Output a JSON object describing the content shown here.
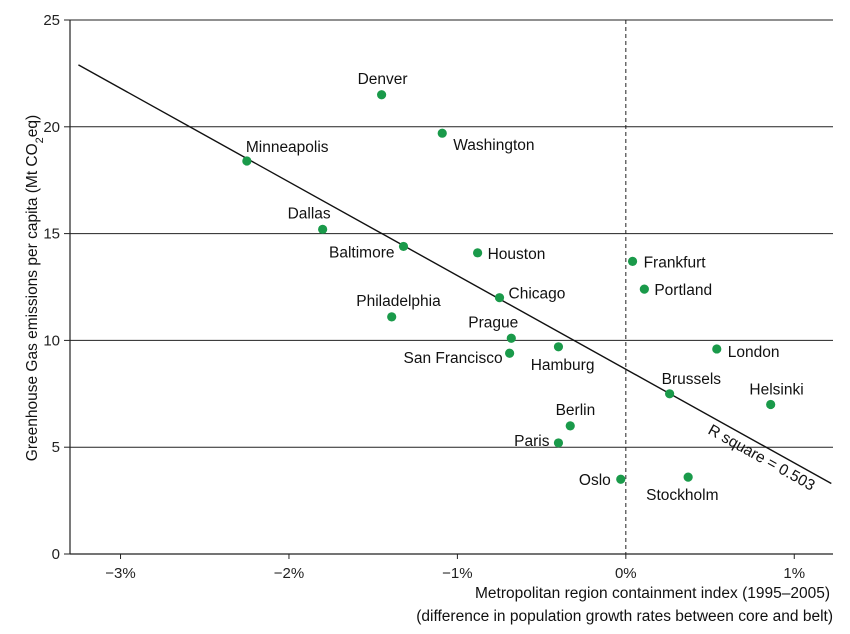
{
  "chart_data": {
    "type": "scatter",
    "xlabel_lines": [
      "Metropolitan region containment index (1995–2005)",
      "(difference in population growth rates between core and belt)"
    ],
    "ylabel_prefix": "Greenhouse Gas emissions per capita (Mt CO",
    "ylabel_sub": "2",
    "ylabel_suffix": "eq)",
    "xlim": [
      -3.3,
      1.23
    ],
    "ylim": [
      0,
      25
    ],
    "x_ticks": [
      {
        "v": -3,
        "label": "−3%"
      },
      {
        "v": -2,
        "label": "−2%"
      },
      {
        "v": -1,
        "label": "−1%"
      },
      {
        "v": 0,
        "label": "0%"
      },
      {
        "v": 1,
        "label": "1%"
      }
    ],
    "y_ticks": [
      {
        "v": 0,
        "label": "0"
      },
      {
        "v": 5,
        "label": "5"
      },
      {
        "v": 10,
        "label": "10"
      },
      {
        "v": 15,
        "label": "15"
      },
      {
        "v": 20,
        "label": "20"
      },
      {
        "v": 25,
        "label": "25"
      }
    ],
    "grid": "horizontal",
    "reference_line_x": 0,
    "point_color": "#1a9a4a",
    "points": [
      {
        "name": "Denver",
        "x": -1.45,
        "y": 21.5,
        "anchor": "start",
        "dx": -24,
        "dy": -16
      },
      {
        "name": "Washington",
        "x": -1.09,
        "y": 19.7,
        "anchor": "start",
        "dx": 11,
        "dy": 12
      },
      {
        "name": "Minneapolis",
        "x": -2.25,
        "y": 18.4,
        "anchor": "start",
        "dx": -1,
        "dy": -14
      },
      {
        "name": "Dallas",
        "x": -1.8,
        "y": 15.2,
        "anchor": "end",
        "dx": 8,
        "dy": -16
      },
      {
        "name": "Baltimore",
        "x": -1.32,
        "y": 14.4,
        "anchor": "end",
        "dx": -9,
        "dy": 6
      },
      {
        "name": "Houston",
        "x": -0.88,
        "y": 14.1,
        "anchor": "start",
        "dx": 10,
        "dy": 1
      },
      {
        "name": "Frankfurt",
        "x": 0.04,
        "y": 13.7,
        "anchor": "start",
        "dx": 11,
        "dy": 1
      },
      {
        "name": "Portland",
        "x": 0.11,
        "y": 12.4,
        "anchor": "start",
        "dx": 10,
        "dy": 1
      },
      {
        "name": "Chicago",
        "x": -0.75,
        "y": 12.0,
        "anchor": "start",
        "dx": 9,
        "dy": -4
      },
      {
        "name": "Philadelphia",
        "x": -1.39,
        "y": 11.1,
        "anchor": "end",
        "dx": 49,
        "dy": -16
      },
      {
        "name": "Prague",
        "x": -0.68,
        "y": 10.1,
        "anchor": "end",
        "dx": 7,
        "dy": -16
      },
      {
        "name": "San Francisco",
        "x": -0.69,
        "y": 9.4,
        "anchor": "end",
        "dx": -7,
        "dy": 5
      },
      {
        "name": "Hamburg",
        "x": -0.4,
        "y": 9.7,
        "anchor": "end",
        "dx": 36,
        "dy": 18
      },
      {
        "name": "London",
        "x": 0.54,
        "y": 9.6,
        "anchor": "start",
        "dx": 11,
        "dy": 3
      },
      {
        "name": "Brussels",
        "x": 0.26,
        "y": 7.5,
        "anchor": "start",
        "dx": -8,
        "dy": -15
      },
      {
        "name": "Helsinki",
        "x": 0.86,
        "y": 7.0,
        "anchor": "end",
        "dx": 33,
        "dy": -15
      },
      {
        "name": "Berlin",
        "x": -0.33,
        "y": 6.0,
        "anchor": "end",
        "dx": 25,
        "dy": -16
      },
      {
        "name": "Paris",
        "x": -0.4,
        "y": 5.2,
        "anchor": "end",
        "dx": -9,
        "dy": -2
      },
      {
        "name": "Oslo",
        "x": -0.03,
        "y": 3.5,
        "anchor": "end",
        "dx": -10,
        "dy": 1
      },
      {
        "name": "Stockholm",
        "x": 0.37,
        "y": 3.6,
        "anchor": "start",
        "dx": -42,
        "dy": 18
      }
    ],
    "trendline": {
      "x1": -3.25,
      "y1": 22.9,
      "x2": 1.22,
      "y2": 3.3
    },
    "trend_label": "R square = 0.503"
  }
}
